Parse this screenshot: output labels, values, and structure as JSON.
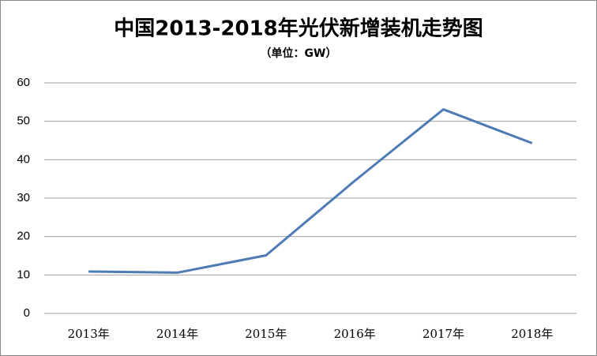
{
  "chart_data": {
    "type": "line",
    "title": "中国2013-2018年光伏新增装机走势图",
    "subtitle": "（单位：GW）",
    "categories": [
      "2013年",
      "2014年",
      "2015年",
      "2016年",
      "2017年",
      "2018年"
    ],
    "values": [
      10.9,
      10.6,
      15.1,
      34.5,
      53.1,
      44.3
    ],
    "color": "#4f7bb5",
    "ylim": [
      0,
      60
    ],
    "yticks": [
      0,
      10,
      20,
      30,
      40,
      50,
      60
    ],
    "grid": true
  }
}
